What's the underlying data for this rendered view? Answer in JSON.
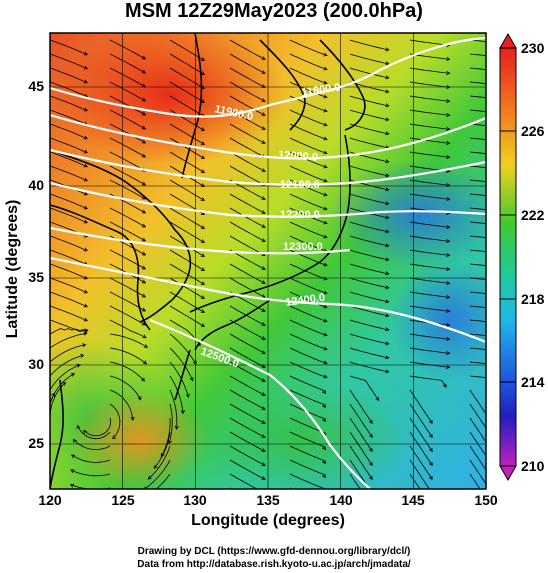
{
  "title": "MSM 12Z29May2023 (200.0hPa)",
  "x_axis": {
    "label": "Longitude (degrees)",
    "ticks": [
      "120",
      "125",
      "130",
      "135",
      "140",
      "145",
      "150"
    ]
  },
  "y_axis": {
    "label": "Latitude  (degrees)",
    "ticks": [
      "45",
      "40",
      "35",
      "30",
      "25"
    ]
  },
  "colorbar": {
    "labels": [
      "230",
      "226",
      "222",
      "218",
      "214",
      "210"
    ],
    "min": 210,
    "max": 230
  },
  "contours": [
    {
      "label": "11800.0"
    },
    {
      "label": "11900.0"
    },
    {
      "label": "12000.0"
    },
    {
      "label": "12100.0"
    },
    {
      "label": "12200.0"
    },
    {
      "label": "12300.0"
    },
    {
      "label": "12400.0"
    },
    {
      "label": "12500.0"
    }
  ],
  "credits": {
    "line1": "Drawing by DCL (https://www.gfd-dennou.org/library/dcl/)",
    "line2": "Data from http://database.rish.kyoto-u.ac.jp/arch/jmadata/"
  },
  "colors": {
    "warm": "#e03020",
    "mid": "#f0d020",
    "green": "#30c030",
    "cool": "#20a0e0"
  }
}
